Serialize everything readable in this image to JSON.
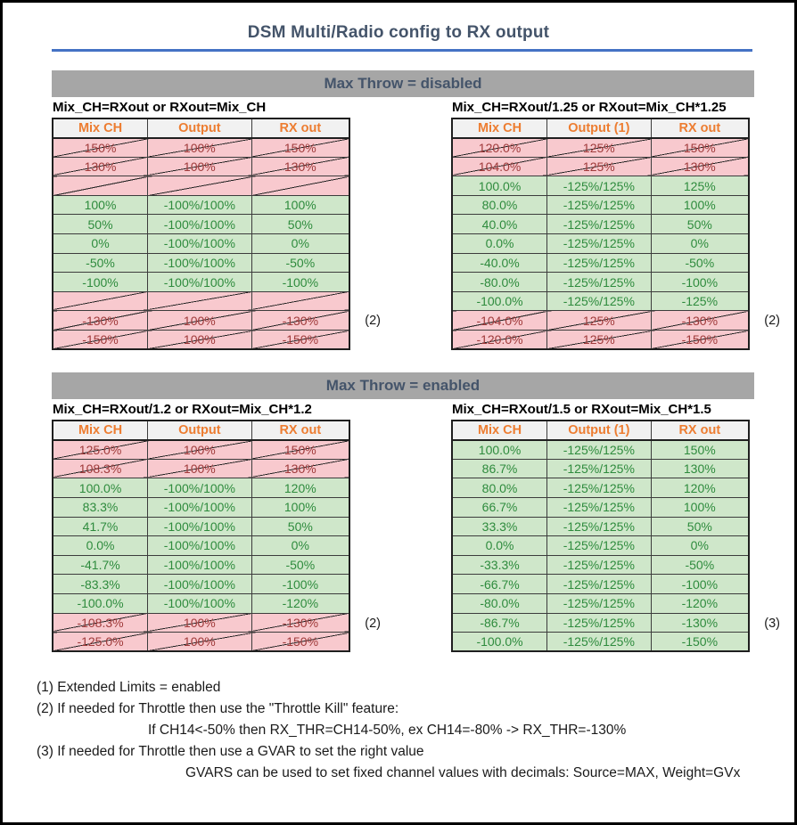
{
  "page": {
    "title": "DSM Multi/Radio config to RX output"
  },
  "colors": {
    "accent_blue": "#4472c4",
    "heading_text": "#44546a",
    "section_bar_bg": "#a6a6a6",
    "column_header_orange": "#ed7d31",
    "good_bg": "#cfe7ca",
    "good_text": "#2e8b3d",
    "bad_bg": "#f8c9ce",
    "bad_text": "#a03b3b"
  },
  "sections": [
    {
      "title": "Max Throw = disabled",
      "tables": [
        {
          "caption": "Mix_CH=RXout or RXout=Mix_CH",
          "headers": [
            "Mix CH",
            "Output",
            "RX out"
          ],
          "rows": [
            {
              "cells": [
                "150%",
                "100%",
                "150%"
              ],
              "state": "bad"
            },
            {
              "cells": [
                "130%",
                "100%",
                "130%"
              ],
              "state": "bad"
            },
            {
              "cells": [
                "",
                "",
                ""
              ],
              "state": "bad"
            },
            {
              "cells": [
                "100%",
                "-100%/100%",
                "100%"
              ],
              "state": "good"
            },
            {
              "cells": [
                "50%",
                "-100%/100%",
                "50%"
              ],
              "state": "good"
            },
            {
              "cells": [
                "0%",
                "-100%/100%",
                "0%"
              ],
              "state": "good"
            },
            {
              "cells": [
                "-50%",
                "-100%/100%",
                "-50%"
              ],
              "state": "good"
            },
            {
              "cells": [
                "-100%",
                "-100%/100%",
                "-100%"
              ],
              "state": "good"
            },
            {
              "cells": [
                "",
                "",
                ""
              ],
              "state": "bad"
            },
            {
              "cells": [
                "-130%",
                "100%",
                "-130%"
              ],
              "state": "bad",
              "note": "(2)"
            },
            {
              "cells": [
                "-150%",
                "100%",
                "-150%"
              ],
              "state": "bad"
            }
          ]
        },
        {
          "caption": "Mix_CH=RXout/1.25 or RXout=Mix_CH*1.25",
          "headers": [
            "Mix CH",
            "Output (1)",
            "RX out"
          ],
          "rows": [
            {
              "cells": [
                "120.0%",
                "125%",
                "150%"
              ],
              "state": "bad"
            },
            {
              "cells": [
                "104.0%",
                "125%",
                "130%"
              ],
              "state": "bad"
            },
            {
              "cells": [
                "100.0%",
                "-125%/125%",
                "125%"
              ],
              "state": "good"
            },
            {
              "cells": [
                "80.0%",
                "-125%/125%",
                "100%"
              ],
              "state": "good"
            },
            {
              "cells": [
                "40.0%",
                "-125%/125%",
                "50%"
              ],
              "state": "good"
            },
            {
              "cells": [
                "0.0%",
                "-125%/125%",
                "0%"
              ],
              "state": "good"
            },
            {
              "cells": [
                "-40.0%",
                "-125%/125%",
                "-50%"
              ],
              "state": "good"
            },
            {
              "cells": [
                "-80.0%",
                "-125%/125%",
                "-100%"
              ],
              "state": "good"
            },
            {
              "cells": [
                "-100.0%",
                "-125%/125%",
                "-125%"
              ],
              "state": "good"
            },
            {
              "cells": [
                "-104.0%",
                "125%",
                "-130%"
              ],
              "state": "bad",
              "note": "(2)"
            },
            {
              "cells": [
                "-120.0%",
                "125%",
                "-150%"
              ],
              "state": "bad"
            }
          ]
        }
      ]
    },
    {
      "title": "Max Throw = enabled",
      "tables": [
        {
          "caption": "Mix_CH=RXout/1.2 or RXout=Mix_CH*1.2",
          "headers": [
            "Mix CH",
            "Output",
            "RX out"
          ],
          "rows": [
            {
              "cells": [
                "125.0%",
                "100%",
                "150%"
              ],
              "state": "bad"
            },
            {
              "cells": [
                "108.3%",
                "100%",
                "130%"
              ],
              "state": "bad"
            },
            {
              "cells": [
                "100.0%",
                "-100%/100%",
                "120%"
              ],
              "state": "good"
            },
            {
              "cells": [
                "83.3%",
                "-100%/100%",
                "100%"
              ],
              "state": "good"
            },
            {
              "cells": [
                "41.7%",
                "-100%/100%",
                "50%"
              ],
              "state": "good"
            },
            {
              "cells": [
                "0.0%",
                "-100%/100%",
                "0%"
              ],
              "state": "good"
            },
            {
              "cells": [
                "-41.7%",
                "-100%/100%",
                "-50%"
              ],
              "state": "good"
            },
            {
              "cells": [
                "-83.3%",
                "-100%/100%",
                "-100%"
              ],
              "state": "good"
            },
            {
              "cells": [
                "-100.0%",
                "-100%/100%",
                "-120%"
              ],
              "state": "good"
            },
            {
              "cells": [
                "-108.3%",
                "100%",
                "-130%"
              ],
              "state": "bad",
              "note": "(2)"
            },
            {
              "cells": [
                "-125.0%",
                "100%",
                "-150%"
              ],
              "state": "bad"
            }
          ]
        },
        {
          "caption": "Mix_CH=RXout/1.5 or RXout=Mix_CH*1.5",
          "headers": [
            "Mix CH",
            "Output (1)",
            "RX out"
          ],
          "rows": [
            {
              "cells": [
                "100.0%",
                "-125%/125%",
                "150%"
              ],
              "state": "good"
            },
            {
              "cells": [
                "86.7%",
                "-125%/125%",
                "130%"
              ],
              "state": "good"
            },
            {
              "cells": [
                "80.0%",
                "-125%/125%",
                "120%"
              ],
              "state": "good"
            },
            {
              "cells": [
                "66.7%",
                "-125%/125%",
                "100%"
              ],
              "state": "good"
            },
            {
              "cells": [
                "33.3%",
                "-125%/125%",
                "50%"
              ],
              "state": "good"
            },
            {
              "cells": [
                "0.0%",
                "-125%/125%",
                "0%"
              ],
              "state": "good"
            },
            {
              "cells": [
                "-33.3%",
                "-125%/125%",
                "-50%"
              ],
              "state": "good"
            },
            {
              "cells": [
                "-66.7%",
                "-125%/125%",
                "-100%"
              ],
              "state": "good"
            },
            {
              "cells": [
                "-80.0%",
                "-125%/125%",
                "-120%"
              ],
              "state": "good"
            },
            {
              "cells": [
                "-86.7%",
                "-125%/125%",
                "-130%"
              ],
              "state": "good",
              "note": "(3)"
            },
            {
              "cells": [
                "-100.0%",
                "-125%/125%",
                "-150%"
              ],
              "state": "good"
            }
          ]
        }
      ]
    }
  ],
  "footnotes": [
    "(1) Extended Limits = enabled",
    "(2) If needed for Throttle then use the \"Throttle Kill\" feature:",
    "If CH14<-50% then RX_THR=CH14-50%, ex CH14=-80% -> RX_THR=-130%",
    "(3) If needed for Throttle then use a GVAR to set the right value",
    "GVARS can be used to set fixed channel values with decimals: Source=MAX, Weight=GVx"
  ]
}
